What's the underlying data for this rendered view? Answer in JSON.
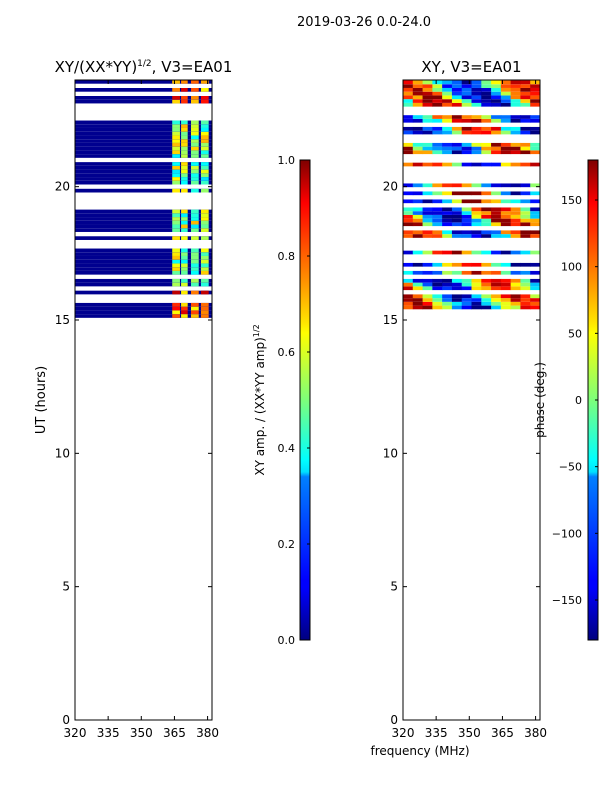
{
  "figure": {
    "suptitle": "2019-03-26 0.0-24.0",
    "shared_xlabel": "frequency (MHz)"
  },
  "chart_data": [
    {
      "type": "heatmap",
      "title_main": "XY/(XX*YY)",
      "title_exp": "1/2",
      "title_tail": ", V3=EA01",
      "xlabel": "",
      "ylabel": "UT (hours)",
      "xlim": [
        320,
        382
      ],
      "ylim": [
        0,
        24
      ],
      "xticks": [
        320,
        335,
        350,
        365,
        380
      ],
      "yticks": [
        0,
        5,
        10,
        15,
        20
      ],
      "data_extent_ut": [
        15.1,
        24
      ],
      "colormap": "jet",
      "colorbar": {
        "label_main": "XY amp. / (XX*YY amp)",
        "label_exp": "1/2",
        "range": [
          0.0,
          1.0
        ],
        "ticks": [
          "0.0",
          "0.2",
          "0.4",
          "0.6",
          "0.8",
          "1.0"
        ]
      }
    },
    {
      "type": "heatmap",
      "title_main": "XY, V3=EA01",
      "title_exp": "",
      "title_tail": "",
      "xlabel": "frequency (MHz)",
      "ylabel": "",
      "xlim": [
        320,
        382
      ],
      "ylim": [
        0,
        24
      ],
      "xticks": [
        320,
        335,
        350,
        365,
        380
      ],
      "yticks": [
        0,
        5,
        10,
        15,
        20
      ],
      "data_extent_ut": [
        15.1,
        24
      ],
      "colormap": "jet",
      "colorbar": {
        "label_main": "phase (deg.)",
        "label_exp": "",
        "range": [
          -180,
          180
        ],
        "ticks": [
          "−150",
          "−100",
          "−50",
          "0",
          "50",
          "100",
          "150"
        ],
        "tick_values": [
          -150,
          -100,
          -50,
          0,
          50,
          100,
          150
        ]
      }
    }
  ]
}
